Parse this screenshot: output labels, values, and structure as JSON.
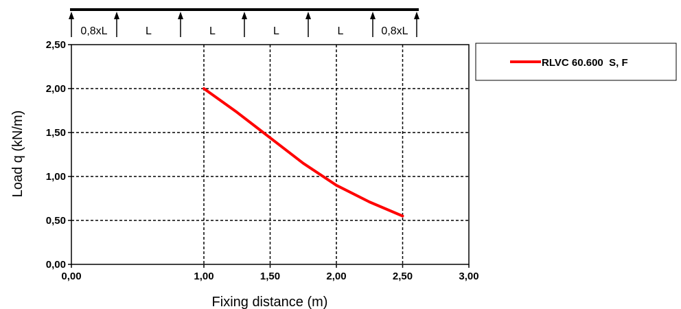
{
  "chart_data": {
    "type": "line",
    "xlabel": "Fixing distance (m)",
    "ylabel": "Load q (kN/m)",
    "xlim": [
      0,
      3
    ],
    "ylim": [
      0,
      2.5
    ],
    "x_ticks": [
      "0,00",
      "1,00",
      "1,50",
      "2,00",
      "2,50",
      "3,00"
    ],
    "y_ticks": [
      "0,00",
      "0,50",
      "1,00",
      "1,50",
      "2,00",
      "2,50"
    ],
    "grid": true,
    "legend_position": "right",
    "series": [
      {
        "name": "RLVC 60.600  S, F",
        "color": "#ff0000",
        "x": [
          1.0,
          1.25,
          1.5,
          1.75,
          2.0,
          2.25,
          2.5
        ],
        "y": [
          2.0,
          1.73,
          1.44,
          1.15,
          0.9,
          0.71,
          0.55
        ]
      }
    ]
  },
  "span_diagram": {
    "labels": [
      "0,8xL",
      "L",
      "L",
      "L",
      "L",
      "0,8xL"
    ]
  }
}
